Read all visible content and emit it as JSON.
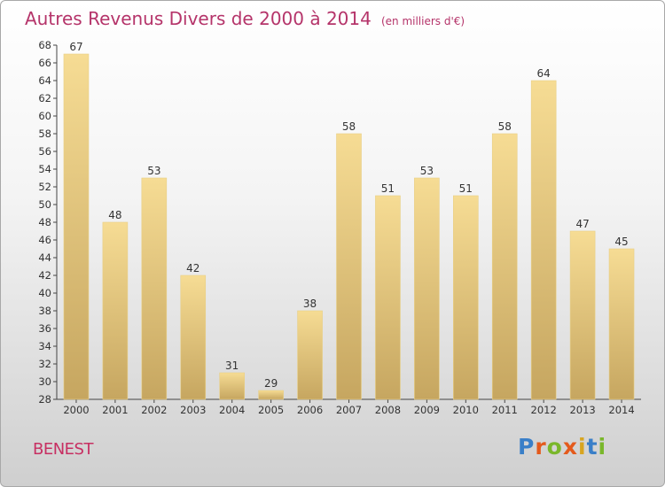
{
  "title": "Autres Revenus Divers de 2000 à 2014",
  "unit": "(en milliers d'€)",
  "city": "BENEST",
  "logo": {
    "text": "Proxiti",
    "colors": [
      "#3a7fc8",
      "#e45a1c",
      "#7ab72b",
      "#e45a1c",
      "#d8a520",
      "#3a7fc8",
      "#7ab72b"
    ]
  },
  "colors": {
    "bar_light": "#f6dc94",
    "bar_dark": "#c6a660",
    "title": "#b5346a"
  },
  "chart_data": {
    "type": "bar",
    "categories": [
      "2000",
      "2001",
      "2002",
      "2003",
      "2004",
      "2005",
      "2006",
      "2007",
      "2008",
      "2009",
      "2010",
      "2011",
      "2012",
      "2013",
      "2014"
    ],
    "values": [
      67,
      48,
      53,
      42,
      31,
      29,
      38,
      58,
      51,
      53,
      51,
      58,
      64,
      47,
      45
    ],
    "ylim": [
      28,
      68
    ],
    "yticks": [
      28,
      30,
      32,
      34,
      36,
      38,
      40,
      42,
      44,
      46,
      48,
      50,
      52,
      54,
      56,
      58,
      60,
      62,
      64,
      66,
      68
    ],
    "grid": false,
    "legend": "none"
  }
}
